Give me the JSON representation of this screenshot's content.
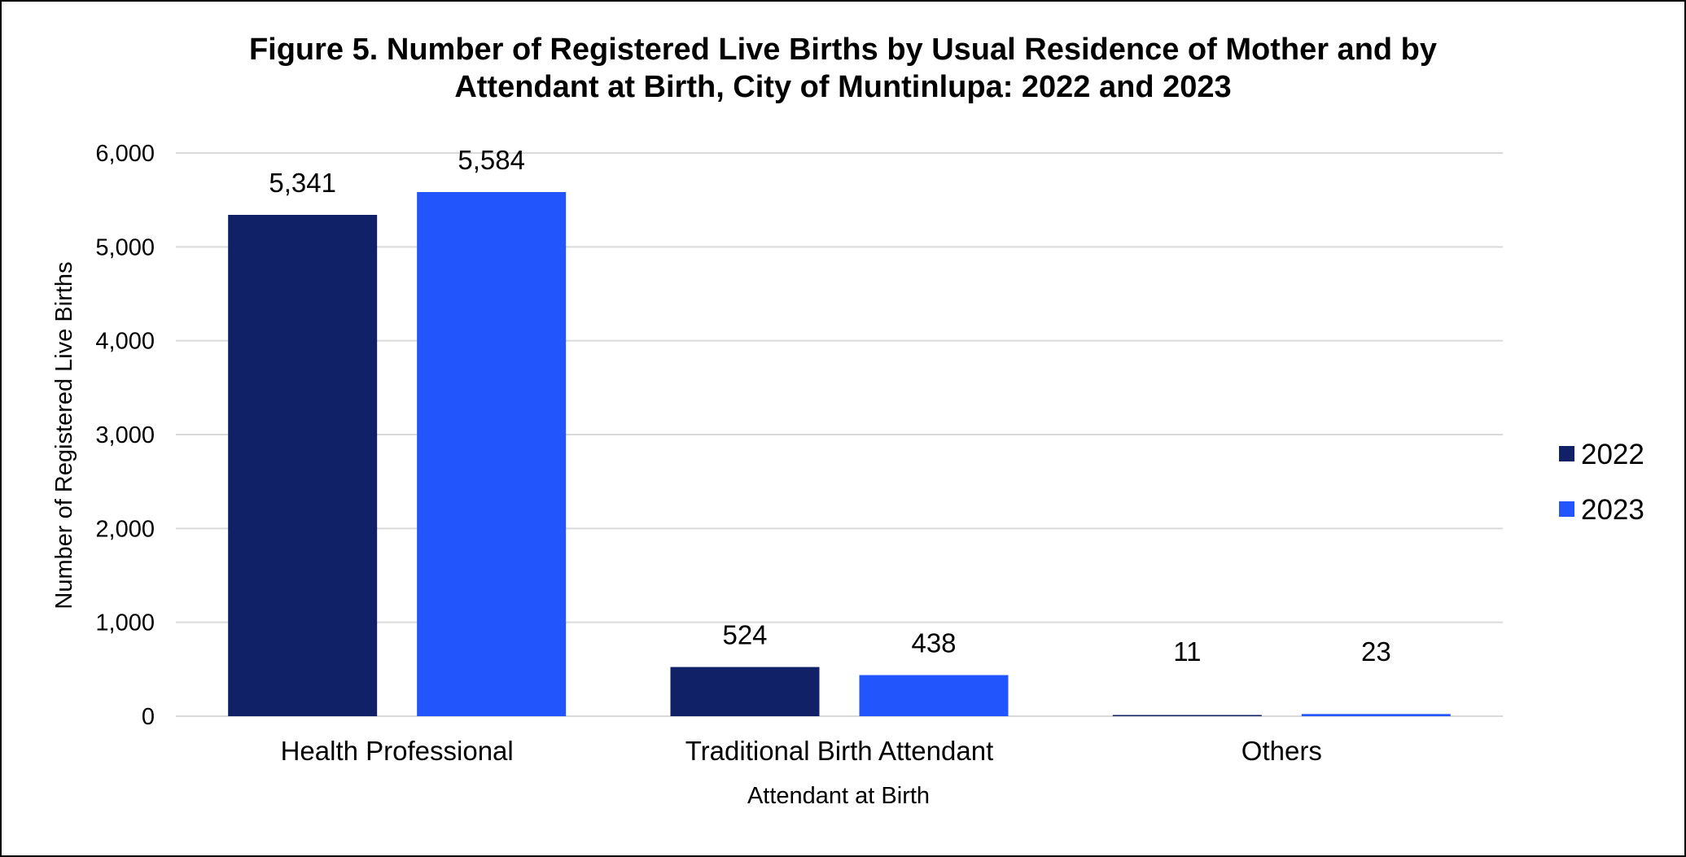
{
  "chart_data": {
    "type": "bar",
    "title_line1": "Figure 5. Number of Registered Live Births by Usual Residence of Mother and by",
    "title_line2": "Attendant at Birth, City of Muntinlupa: 2022 and 2023",
    "xlabel": "Attendant at Birth",
    "ylabel": "Number of Registered Live Births",
    "categories": [
      "Health Professional",
      "Traditional Birth Attendant",
      "Others"
    ],
    "series": [
      {
        "name": "2022",
        "color": "#102168",
        "values": [
          5341,
          524,
          11
        ],
        "labels": [
          "5,341",
          "524",
          "11"
        ]
      },
      {
        "name": "2023",
        "color": "#2255FB",
        "values": [
          5584,
          438,
          23
        ],
        "labels": [
          "5,584",
          "438",
          "23"
        ]
      }
    ],
    "ylim": [
      0,
      6000
    ],
    "yticks": [
      0,
      1000,
      2000,
      3000,
      4000,
      5000,
      6000
    ],
    "ytick_labels": [
      "0",
      "1,000",
      "2,000",
      "3,000",
      "4,000",
      "5,000",
      "6,000"
    ],
    "grid": true,
    "legend_position": "right"
  }
}
